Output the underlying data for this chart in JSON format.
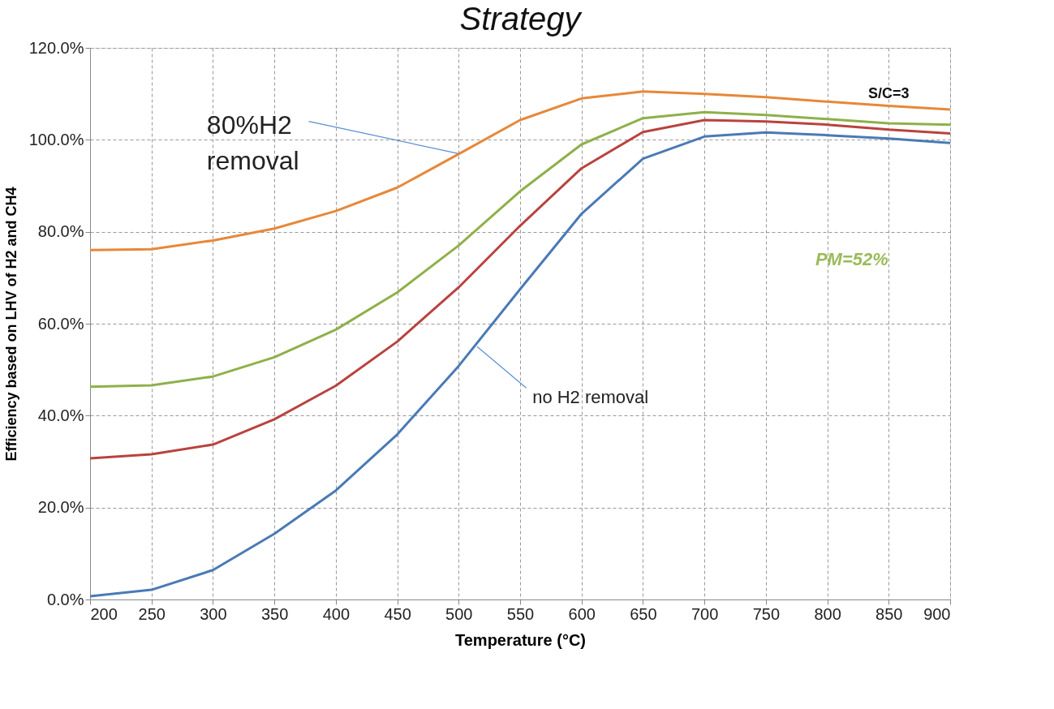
{
  "chart_data": {
    "type": "line",
    "title": "Strategy",
    "xlabel": "Temperature (°C)",
    "ylabel": "Efficiency based on LHV of H2 and CH4",
    "x": [
      200,
      250,
      300,
      350,
      400,
      450,
      500,
      550,
      600,
      650,
      700,
      750,
      800,
      850,
      900
    ],
    "series": [
      {
        "color": "#e6883a",
        "values": [
          76.0,
          76.2,
          78.1,
          80.7,
          84.5,
          89.6,
          96.9,
          104.3,
          109.0,
          110.5,
          110.0,
          109.3,
          108.3,
          107.4,
          106.6
        ]
      },
      {
        "color": "#8fb04a",
        "values": [
          46.3,
          46.6,
          48.5,
          52.7,
          58.7,
          66.8,
          77.0,
          88.8,
          99.0,
          104.7,
          106.0,
          105.4,
          104.5,
          103.6,
          103.3
        ]
      },
      {
        "color": "#b8433f",
        "values": [
          30.7,
          31.6,
          33.7,
          39.2,
          46.5,
          56.1,
          67.9,
          81.3,
          93.8,
          101.7,
          104.3,
          104.0,
          103.3,
          102.2,
          101.4
        ]
      },
      {
        "color": "#4a7ab5",
        "values": [
          0.7,
          2.1,
          6.4,
          14.3,
          23.7,
          35.9,
          50.8,
          67.5,
          83.9,
          95.9,
          100.7,
          101.6,
          101.0,
          100.3,
          99.3
        ]
      }
    ],
    "xlim": [
      200,
      900
    ],
    "xticks": [
      200,
      250,
      300,
      350,
      400,
      450,
      500,
      550,
      600,
      650,
      700,
      750,
      800,
      850,
      900
    ],
    "ylim": [
      0,
      120
    ],
    "yticks": [
      {
        "value": 0,
        "label": "0.0%"
      },
      {
        "value": 20,
        "label": "20.0%"
      },
      {
        "value": 40,
        "label": "40.0%"
      },
      {
        "value": 60,
        "label": "60.0%"
      },
      {
        "value": 80,
        "label": "80.0%"
      },
      {
        "value": 100,
        "label": "100.0%"
      },
      {
        "value": 120,
        "label": "120.0%"
      }
    ],
    "grid": true,
    "marker": "none",
    "line_style": "solid",
    "annotations": [
      {
        "text": "80%H2 removal",
        "x": 500,
        "y": 97
      },
      {
        "text": "no H2 removal",
        "x": 515,
        "y": 55
      },
      "S/C=3",
      "PM=52%"
    ]
  }
}
